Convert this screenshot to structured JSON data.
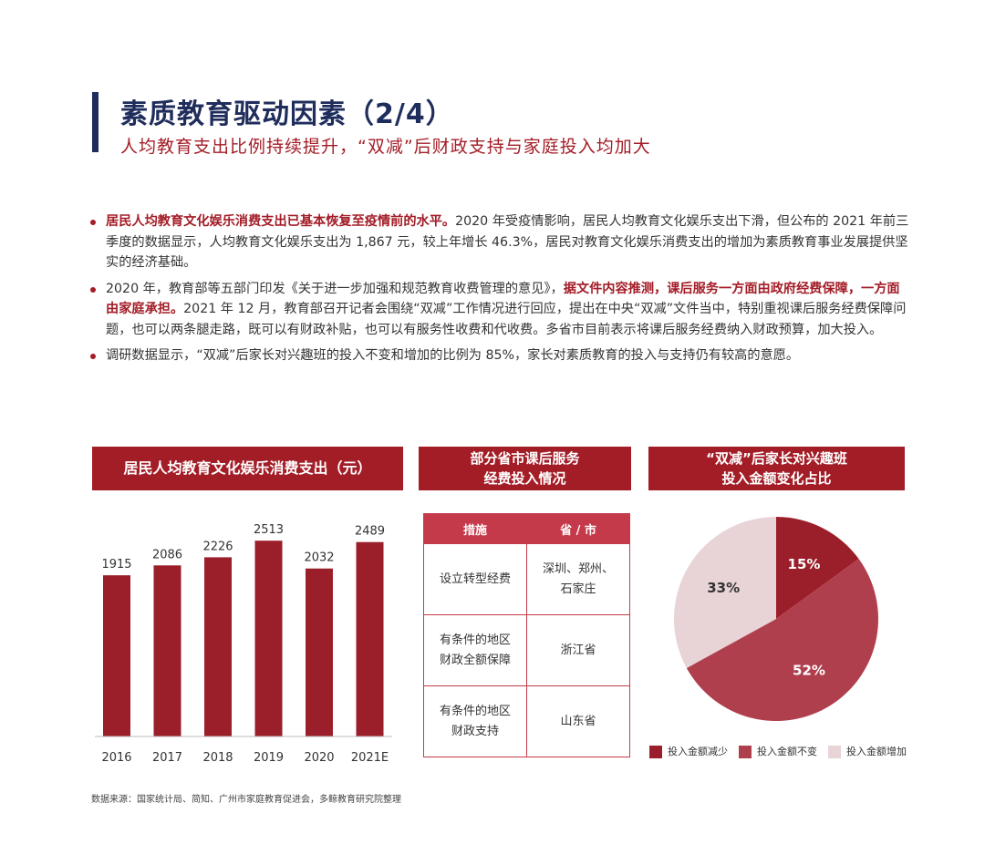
{
  "header": {
    "title": "素质教育驱动因素（2/4）",
    "subtitle": "人均教育支出比例持续提升，“双减”后财政支持与家庭投入均加大"
  },
  "bullets": [
    {
      "highlight": "居民人均教育文化娱乐消费支出已基本恢复至疫情前的水平。",
      "text": "2020 年受疫情影响，居民人均教育文化娱乐支出下滑，但公布的 2021 年前三季度的数据显示，人均教育文化娱乐支出为 1,867 元，较上年增长 46.3%，居民对教育文化娱乐消费支出的增加为素质教育事业发展提供坚实的经济基础。"
    },
    {
      "pre": "2020 年，教育部等五部门印发《关于进一步加强和规范教育收费管理的意见》，",
      "highlight": "据文件内容推测，课后服务一方面由政府经费保障，一方面由家庭承担。",
      "text": "2021 年 12 月，教育部召开记者会围绕“双减”工作情况进行回应，提出在中央“双减”文件当中，特别重视课后服务经费保障问题，也可以两条腿走路，既可以有财政补贴，也可以有服务性收费和代收费。多省市目前表示将课后服务经费纳入财政预算，加大投入。"
    },
    {
      "text": "调研数据显示，“双减”后家长对兴趣班的投入不变和增加的比例为 85%，家长对素质教育的投入与支持仍有较高的意愿。"
    }
  ],
  "panels": {
    "bar_title": "居民人均教育文化娱乐消费支出（元）",
    "table_title_1": "部分省市课后服务",
    "table_title_2": "经费投入情况",
    "pie_title_1": "“双减”后家长对兴趣班",
    "pie_title_2": "投入金额变化占比"
  },
  "table": {
    "headers": [
      "措施",
      "省 / 市"
    ],
    "rows": [
      {
        "measure": [
          "设立转型经费"
        ],
        "region": [
          "深圳、郑州、",
          "石家庄"
        ]
      },
      {
        "measure": [
          "有条件的地区",
          "财政全额保障"
        ],
        "region": [
          "浙江省"
        ]
      },
      {
        "measure": [
          "有条件的地区",
          "财政支持"
        ],
        "region": [
          "山东省"
        ]
      }
    ]
  },
  "chart_data": [
    {
      "type": "bar",
      "title": "居民人均教育文化娱乐消费支出（元）",
      "categories": [
        "2016",
        "2017",
        "2018",
        "2019",
        "2020",
        "2021E"
      ],
      "values": [
        1915,
        2086,
        2226,
        2513,
        2032,
        2489
      ],
      "color": "#9b1f2a"
    },
    {
      "type": "pie",
      "title": "“双减”后家长对兴趣班投入金额变化占比",
      "slices": [
        {
          "name": "投入金额减少",
          "value": 15,
          "label": "15%",
          "color": "#9b1f2a"
        },
        {
          "name": "投入金额不变",
          "value": 52,
          "label": "52%",
          "color": "#b03f4d"
        },
        {
          "name": "投入金额增加",
          "value": 33,
          "label": "33%",
          "color": "#e8d3d6"
        }
      ],
      "legend": "bottom"
    }
  ],
  "source": "数据来源：国家统计局、简知、广州市家庭教育促进会，多鲸教育研究院整理"
}
